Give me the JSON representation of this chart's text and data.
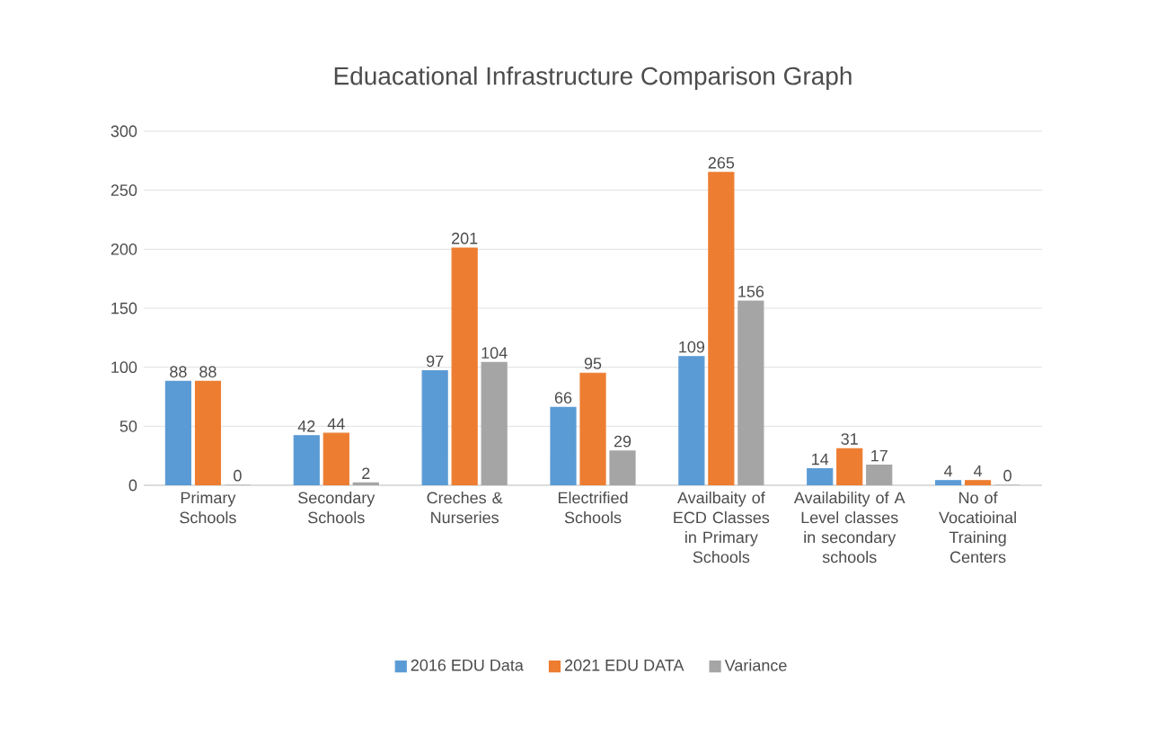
{
  "chart_data": {
    "type": "bar",
    "title": "Eduacational Infrastructure Comparison Graph",
    "categories": [
      "Primary Schools",
      "Secondary Schools",
      "Creches & Nurseries",
      "Electrified Schools",
      "Availbaity of ECD Classes in Primary Schools",
      "Availability of A Level classes in secondary schools",
      "No of Vocatioinal Training Centers"
    ],
    "series": [
      {
        "name": "2016 EDU Data",
        "color": "#5b9bd5",
        "values": [
          88,
          42,
          97,
          66,
          109,
          14,
          4
        ]
      },
      {
        "name": "2021 EDU DATA",
        "color": "#ed7d31",
        "values": [
          88,
          44,
          201,
          95,
          265,
          31,
          4
        ]
      },
      {
        "name": "Variance",
        "color": "#a5a5a5",
        "values": [
          0,
          2,
          104,
          29,
          156,
          17,
          0
        ]
      }
    ],
    "ylim": [
      0,
      300
    ],
    "yticks": [
      0,
      50,
      100,
      150,
      200,
      250,
      300
    ],
    "grid": "y",
    "legend": "bottom",
    "data_labels": true
  }
}
